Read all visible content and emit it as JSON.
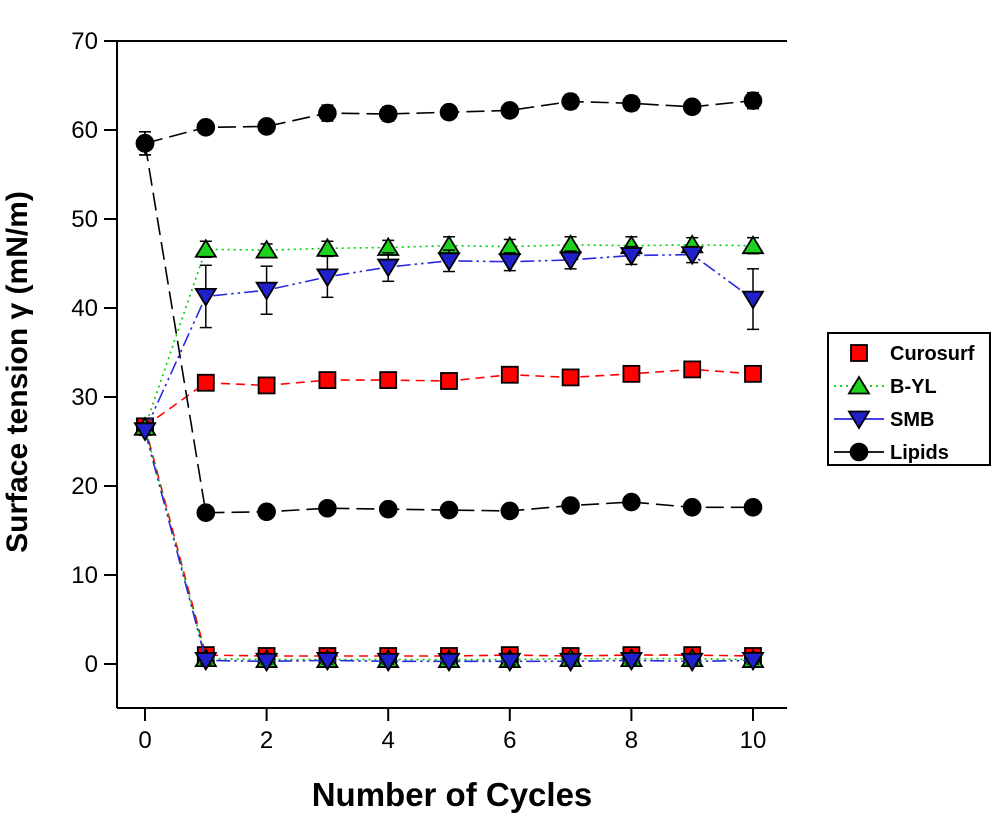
{
  "chart_data": {
    "type": "line",
    "x": [
      0,
      1,
      2,
      3,
      4,
      5,
      6,
      7,
      8,
      9,
      10
    ],
    "xlabel": "Number of Cycles",
    "ylabel": "Surface tension γ (mN/m)",
    "xlim": [
      -0.5,
      10.6
    ],
    "ylim": [
      -5,
      70
    ],
    "x_ticks": [
      0,
      2,
      4,
      6,
      8,
      10
    ],
    "y_ticks": [
      0,
      10,
      20,
      30,
      40,
      50,
      60,
      70
    ],
    "grid": false,
    "legend_position": "right",
    "series": [
      {
        "name": "Curosurf max",
        "legend": "Curosurf",
        "marker": "square",
        "color": "#ff0000",
        "line_color": "#ff0000",
        "line_style": "short-dash",
        "values": [
          26.7,
          31.6,
          31.3,
          31.9,
          31.9,
          31.8,
          32.5,
          32.2,
          32.6,
          33.1,
          32.6
        ],
        "errors": [
          0.6,
          0,
          0,
          0,
          0,
          0,
          0,
          0,
          0,
          0,
          0.6
        ]
      },
      {
        "name": "Curosurf min",
        "legend": "Curosurf",
        "marker": "square",
        "color": "#ff0000",
        "line_color": "#ff0000",
        "line_style": "short-dash",
        "values": [
          26.7,
          1.0,
          0.9,
          0.9,
          0.9,
          0.9,
          1.0,
          0.9,
          1.0,
          1.0,
          0.9
        ],
        "errors": [
          0.6,
          0.2,
          0.2,
          0.2,
          0.2,
          0.2,
          0.2,
          0.2,
          0.2,
          0.2,
          0.2
        ]
      },
      {
        "name": "B-YL max",
        "legend": "B-YL",
        "marker": "triangle-up",
        "color": "#1dd11d",
        "line_color": "#00cc00",
        "line_style": "dot",
        "values": [
          26.6,
          46.6,
          46.5,
          46.7,
          46.8,
          47.0,
          46.9,
          47.1,
          47.0,
          47.1,
          47.0
        ],
        "errors": [
          0.5,
          0.9,
          0.7,
          0.8,
          0.8,
          1.0,
          0.8,
          0.9,
          1.0,
          0.8,
          0.9
        ]
      },
      {
        "name": "B-YL min",
        "legend": "B-YL",
        "marker": "triangle-up",
        "color": "#1dd11d",
        "line_color": "#00cc00",
        "line_style": "dot",
        "values": [
          26.6,
          0.6,
          0.5,
          0.5,
          0.5,
          0.5,
          0.5,
          0.6,
          0.6,
          0.6,
          0.5
        ],
        "errors": [
          0.5,
          0.3,
          0.3,
          0.3,
          0.3,
          0.3,
          0.3,
          0.3,
          0.3,
          0.3,
          0.3
        ]
      },
      {
        "name": "SMB max",
        "legend": "SMB",
        "marker": "triangle-down",
        "color": "#2121cc",
        "line_color": "#2929e0",
        "line_style": "dash-dot-dot",
        "values": [
          26.2,
          41.3,
          42.0,
          43.5,
          44.6,
          45.3,
          45.2,
          45.4,
          45.9,
          46.0,
          41.0
        ],
        "errors": [
          0.5,
          3.5,
          2.7,
          2.3,
          1.6,
          1.2,
          1.0,
          1.0,
          1.0,
          0.9,
          3.4
        ]
      },
      {
        "name": "SMB min",
        "legend": "SMB",
        "marker": "triangle-down",
        "color": "#2121cc",
        "line_color": "#2929e0",
        "line_style": "dash-dot-dot",
        "values": [
          26.2,
          0.4,
          0.3,
          0.4,
          0.3,
          0.3,
          0.3,
          0.3,
          0.4,
          0.3,
          0.4
        ],
        "errors": [
          0.5,
          0.4,
          0.3,
          0.4,
          0.3,
          0.3,
          0.4,
          0.3,
          0.4,
          0.3,
          0.4
        ]
      },
      {
        "name": "Lipids max",
        "legend": "Lipids",
        "marker": "circle",
        "color": "#000000",
        "line_color": "#000000",
        "line_style": "long-dash",
        "values": [
          58.5,
          60.3,
          60.4,
          61.9,
          61.8,
          62.0,
          62.2,
          63.2,
          63.0,
          62.6,
          63.3
        ],
        "errors": [
          1.3,
          0.6,
          0.5,
          0.9,
          0.8,
          0.7,
          0.6,
          0.8,
          0.8,
          0.7,
          0.9
        ]
      },
      {
        "name": "Lipids min",
        "legend": "Lipids",
        "marker": "circle",
        "color": "#000000",
        "line_color": "#000000",
        "line_style": "long-dash",
        "values": [
          58.5,
          17.0,
          17.1,
          17.5,
          17.4,
          17.3,
          17.2,
          17.8,
          18.2,
          17.6,
          17.6
        ],
        "errors": [
          1.3,
          0.3,
          0.3,
          0.4,
          0.3,
          0.3,
          0.3,
          0.4,
          0.5,
          0.4,
          0.4
        ]
      }
    ],
    "legend_items": [
      {
        "label": "Curosurf",
        "marker": "square",
        "color": "#ff0000",
        "line_style": "none",
        "line_color": "#ff0000"
      },
      {
        "label": "B-YL",
        "marker": "triangle-up",
        "color": "#1dd11d",
        "line_style": "dot",
        "line_color": "#00cc00"
      },
      {
        "label": "SMB",
        "marker": "triangle-down",
        "color": "#2121cc",
        "line_style": "solid",
        "line_color": "#2929e0"
      },
      {
        "label": "Lipids",
        "marker": "circle",
        "color": "#000000",
        "line_style": "solid",
        "line_color": "#000000"
      }
    ]
  }
}
